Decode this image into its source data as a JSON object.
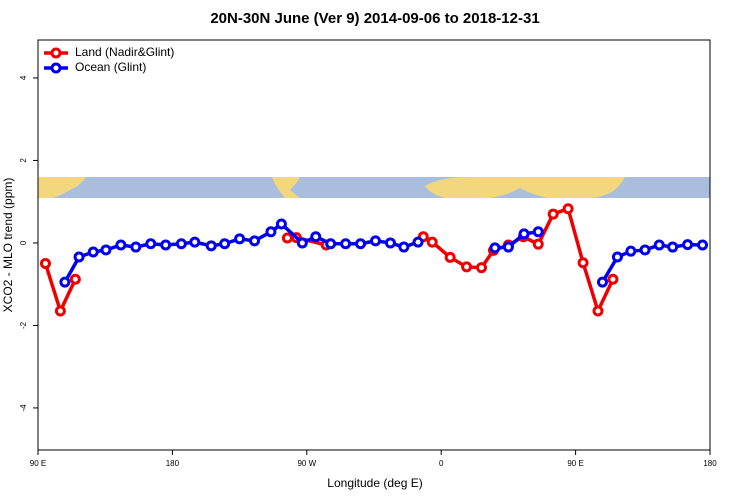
{
  "chart_data": {
    "type": "line",
    "title": "20N-30N June (Ver 9)   2014-09-06 to 2018-12-31",
    "xlabel": "Longitude (deg E)",
    "ylabel": "XCO2 - MLO trend (ppm)",
    "xlim": [
      90,
      540
    ],
    "xticks": [
      {
        "value": 90,
        "label": "90 E"
      },
      180,
      {
        "value": 270,
        "label": "90 W"
      },
      {
        "value": 360,
        "label": "0"
      },
      {
        "value": 450,
        "label": "90 E"
      },
      {
        "value": 540,
        "label": "180"
      }
    ],
    "ylim": [
      -5.02,
      4.92
    ],
    "yticks": [
      -4,
      -2,
      0,
      2,
      4
    ],
    "grid": false,
    "legend": "top-left",
    "series": [
      {
        "name": "Land (Nadir&Glint)",
        "color": "#ee0000",
        "x": [
          95,
          105,
          115,
          null,
          257,
          263,
          283,
          null,
          348,
          354,
          366,
          377,
          387,
          395,
          405,
          415,
          425,
          435,
          445,
          455,
          465,
          475
        ],
        "values": [
          -0.5,
          -1.65,
          -0.88,
          null,
          0.12,
          0.13,
          -0.05,
          null,
          0.15,
          0.02,
          -0.35,
          -0.58,
          -0.6,
          -0.18,
          -0.05,
          0.15,
          -0.03,
          0.7,
          0.83,
          -0.48,
          -1.65,
          -0.88
        ]
      },
      {
        "name": "Ocean (Glint)",
        "color": "#0000ee",
        "x": [
          108,
          117.5,
          127,
          135.5,
          145.5,
          155.5,
          165.5,
          175.5,
          186,
          195,
          206,
          215,
          225,
          235,
          246,
          253,
          267,
          276,
          286,
          296,
          306,
          316,
          326,
          335,
          344.5,
          null,
          396,
          405,
          415.5,
          425,
          null,
          468,
          478,
          487,
          496.5,
          506,
          515,
          525,
          535
        ],
        "values": [
          -0.95,
          -0.34,
          -0.22,
          -0.17,
          -0.05,
          -0.1,
          -0.02,
          -0.05,
          -0.02,
          0.02,
          -0.07,
          -0.02,
          0.1,
          0.05,
          0.27,
          0.46,
          0,
          0.15,
          -0.02,
          -0.02,
          -0.02,
          0.05,
          0,
          -0.1,
          0.02,
          null,
          -0.12,
          -0.1,
          0.22,
          0.27,
          null,
          -0.95,
          -0.34,
          -0.2,
          -0.17,
          -0.05,
          -0.1,
          -0.04,
          -0.05
        ]
      }
    ]
  }
}
